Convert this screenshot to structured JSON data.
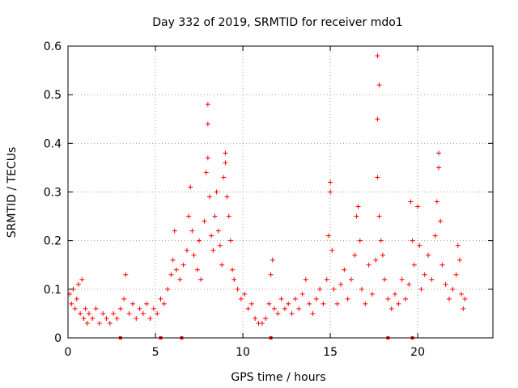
{
  "chart_data": {
    "type": "scatter",
    "title": "Day 332 of 2019, SRMTID for receiver mdo1",
    "xlabel": "GPS time / hours",
    "ylabel": "SRMTID / TECUs",
    "xlim": [
      0,
      24.3
    ],
    "ylim": [
      0,
      0.6
    ],
    "grid": true,
    "marker": "+",
    "color": "#ff0000",
    "xticks": [
      0,
      5,
      10,
      15,
      20
    ],
    "xtick_labels": [
      "0",
      "5",
      "10",
      "15",
      "20"
    ],
    "yticks": [
      0,
      0.1,
      0.2,
      0.3,
      0.4,
      0.5,
      0.6
    ],
    "ytick_labels": [
      "0",
      "0.1",
      "0.2",
      "0.3",
      "0.4",
      "0.5",
      "0.6"
    ],
    "series": [
      {
        "name": "mdo1",
        "points": [
          [
            0.1,
            0.09
          ],
          [
            0.2,
            0.07
          ],
          [
            0.3,
            0.1
          ],
          [
            0.4,
            0.06
          ],
          [
            0.5,
            0.08
          ],
          [
            0.6,
            0.11
          ],
          [
            0.7,
            0.05
          ],
          [
            0.8,
            0.12
          ],
          [
            0.9,
            0.04
          ],
          [
            1.0,
            0.06
          ],
          [
            1.1,
            0.03
          ],
          [
            1.2,
            0.05
          ],
          [
            1.4,
            0.04
          ],
          [
            1.6,
            0.06
          ],
          [
            1.8,
            0.03
          ],
          [
            2.0,
            0.05
          ],
          [
            2.2,
            0.04
          ],
          [
            2.4,
            0.03
          ],
          [
            2.6,
            0.05
          ],
          [
            2.8,
            0.04
          ],
          [
            3.0,
            0.06
          ],
          [
            3.2,
            0.08
          ],
          [
            3.3,
            0.13
          ],
          [
            3.5,
            0.05
          ],
          [
            3.7,
            0.07
          ],
          [
            3.9,
            0.04
          ],
          [
            4.1,
            0.06
          ],
          [
            4.3,
            0.05
          ],
          [
            4.5,
            0.07
          ],
          [
            4.7,
            0.04
          ],
          [
            4.9,
            0.06
          ],
          [
            5.1,
            0.05
          ],
          [
            5.3,
            0.08
          ],
          [
            5.5,
            0.07
          ],
          [
            5.7,
            0.1
          ],
          [
            5.9,
            0.13
          ],
          [
            6.0,
            0.16
          ],
          [
            6.1,
            0.22
          ],
          [
            6.2,
            0.14
          ],
          [
            6.4,
            0.12
          ],
          [
            6.6,
            0.15
          ],
          [
            6.8,
            0.18
          ],
          [
            6.9,
            0.25
          ],
          [
            7.0,
            0.31
          ],
          [
            7.1,
            0.22
          ],
          [
            7.2,
            0.17
          ],
          [
            7.4,
            0.14
          ],
          [
            7.5,
            0.2
          ],
          [
            7.6,
            0.12
          ],
          [
            7.8,
            0.24
          ],
          [
            7.9,
            0.34
          ],
          [
            8.0,
            0.48
          ],
          [
            8.0,
            0.44
          ],
          [
            8.0,
            0.37
          ],
          [
            8.1,
            0.29
          ],
          [
            8.2,
            0.21
          ],
          [
            8.3,
            0.18
          ],
          [
            8.4,
            0.25
          ],
          [
            8.5,
            0.3
          ],
          [
            8.6,
            0.22
          ],
          [
            8.7,
            0.19
          ],
          [
            8.8,
            0.15
          ],
          [
            8.9,
            0.33
          ],
          [
            9.0,
            0.38
          ],
          [
            9.0,
            0.36
          ],
          [
            9.1,
            0.29
          ],
          [
            9.2,
            0.25
          ],
          [
            9.3,
            0.2
          ],
          [
            9.4,
            0.14
          ],
          [
            9.5,
            0.12
          ],
          [
            9.7,
            0.1
          ],
          [
            9.9,
            0.08
          ],
          [
            10.1,
            0.09
          ],
          [
            10.3,
            0.06
          ],
          [
            10.5,
            0.07
          ],
          [
            10.7,
            0.04
          ],
          [
            10.9,
            0.03
          ],
          [
            11.1,
            0.03
          ],
          [
            11.3,
            0.04
          ],
          [
            11.5,
            0.07
          ],
          [
            11.6,
            0.13
          ],
          [
            11.7,
            0.16
          ],
          [
            11.8,
            0.06
          ],
          [
            12.0,
            0.05
          ],
          [
            12.2,
            0.08
          ],
          [
            12.4,
            0.06
          ],
          [
            12.6,
            0.07
          ],
          [
            12.8,
            0.05
          ],
          [
            13.0,
            0.08
          ],
          [
            13.2,
            0.06
          ],
          [
            13.4,
            0.09
          ],
          [
            13.6,
            0.12
          ],
          [
            13.8,
            0.07
          ],
          [
            14.0,
            0.05
          ],
          [
            14.2,
            0.08
          ],
          [
            14.4,
            0.1
          ],
          [
            14.6,
            0.07
          ],
          [
            14.8,
            0.12
          ],
          [
            14.9,
            0.21
          ],
          [
            15.0,
            0.32
          ],
          [
            15.0,
            0.3
          ],
          [
            15.1,
            0.18
          ],
          [
            15.2,
            0.1
          ],
          [
            15.4,
            0.07
          ],
          [
            15.6,
            0.11
          ],
          [
            15.8,
            0.14
          ],
          [
            16.0,
            0.08
          ],
          [
            16.2,
            0.12
          ],
          [
            16.4,
            0.17
          ],
          [
            16.5,
            0.25
          ],
          [
            16.6,
            0.27
          ],
          [
            16.7,
            0.2
          ],
          [
            16.8,
            0.1
          ],
          [
            17.0,
            0.07
          ],
          [
            17.2,
            0.15
          ],
          [
            17.4,
            0.09
          ],
          [
            17.6,
            0.16
          ],
          [
            17.7,
            0.33
          ],
          [
            17.7,
            0.45
          ],
          [
            17.8,
            0.52
          ],
          [
            17.7,
            0.58
          ],
          [
            17.8,
            0.25
          ],
          [
            17.9,
            0.2
          ],
          [
            18.0,
            0.17
          ],
          [
            18.1,
            0.12
          ],
          [
            18.3,
            0.08
          ],
          [
            18.5,
            0.06
          ],
          [
            18.7,
            0.09
          ],
          [
            18.9,
            0.07
          ],
          [
            19.1,
            0.12
          ],
          [
            19.3,
            0.08
          ],
          [
            19.5,
            0.11
          ],
          [
            19.6,
            0.28
          ],
          [
            19.7,
            0.2
          ],
          [
            19.8,
            0.15
          ],
          [
            20.0,
            0.27
          ],
          [
            20.1,
            0.19
          ],
          [
            20.2,
            0.1
          ],
          [
            20.4,
            0.13
          ],
          [
            20.6,
            0.17
          ],
          [
            20.8,
            0.12
          ],
          [
            21.0,
            0.21
          ],
          [
            21.1,
            0.28
          ],
          [
            21.2,
            0.35
          ],
          [
            21.2,
            0.38
          ],
          [
            21.3,
            0.24
          ],
          [
            21.4,
            0.15
          ],
          [
            21.6,
            0.11
          ],
          [
            21.8,
            0.08
          ],
          [
            22.0,
            0.1
          ],
          [
            22.2,
            0.13
          ],
          [
            22.3,
            0.19
          ],
          [
            22.4,
            0.16
          ],
          [
            22.5,
            0.09
          ],
          [
            22.6,
            0.06
          ],
          [
            22.7,
            0.08
          ]
        ]
      }
    ],
    "axis_markers": [
      3.0,
      5.3,
      6.5,
      11.6,
      18.3,
      19.7
    ]
  }
}
